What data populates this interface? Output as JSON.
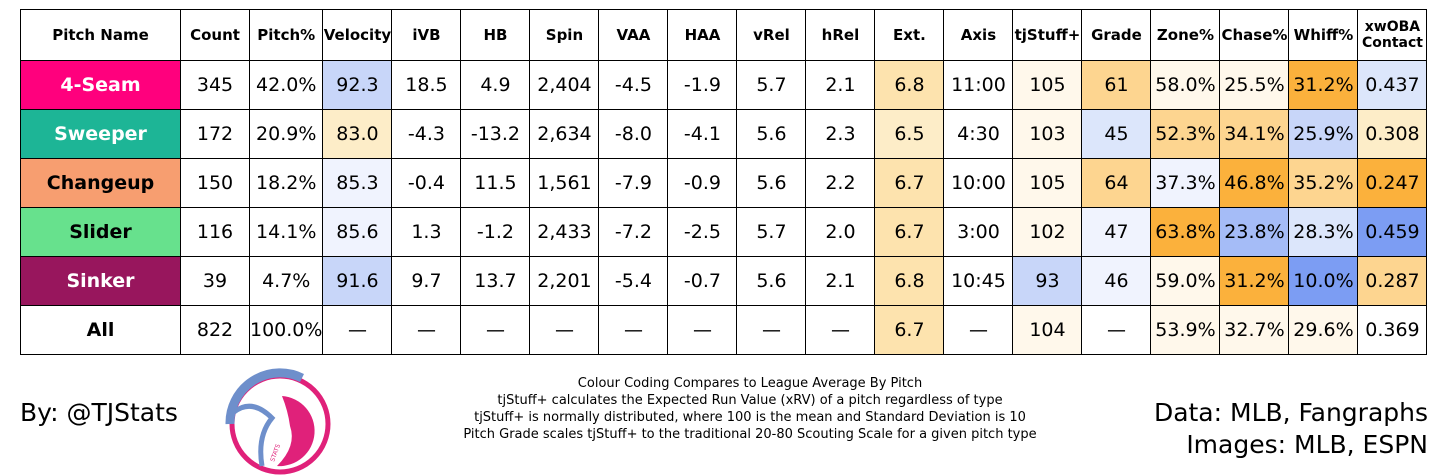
{
  "columns": [
    {
      "key": "name",
      "label": "Pitch Name"
    },
    {
      "key": "count",
      "label": "Count"
    },
    {
      "key": "pitch_pct",
      "label": "Pitch%"
    },
    {
      "key": "velocity",
      "label": "Velocity"
    },
    {
      "key": "ivb",
      "label": "iVB"
    },
    {
      "key": "hb",
      "label": "HB"
    },
    {
      "key": "spin",
      "label": "Spin"
    },
    {
      "key": "vaa",
      "label": "VAA"
    },
    {
      "key": "haa",
      "label": "HAA"
    },
    {
      "key": "vrel",
      "label": "vRel"
    },
    {
      "key": "hrel",
      "label": "hRel"
    },
    {
      "key": "ext",
      "label": "Ext."
    },
    {
      "key": "axis",
      "label": "Axis"
    },
    {
      "key": "tjstuff",
      "label": "tjStuff+"
    },
    {
      "key": "grade",
      "label": "Grade"
    },
    {
      "key": "zone",
      "label": "Zone%"
    },
    {
      "key": "chase",
      "label": "Chase%"
    },
    {
      "key": "whiff",
      "label": "Whiff%"
    },
    {
      "key": "xwoba",
      "label": "xwOBA Contact"
    }
  ],
  "colors": {
    "name_4seam": "#ff007d",
    "name_sweeper": "#1db596",
    "name_changeup": "#f79e70",
    "name_slider": "#67e18d",
    "name_sinker": "#98165d",
    "name_all": "#ffffff",
    "none": "#ffffff",
    "b_light": "#f0f3fe",
    "b_mid": "#dce6fb",
    "b_strong": "#c8d6f9",
    "b_vstrong": "#a5bcf7",
    "b_deep": "#7c9df3",
    "o_vlight": "#fff8eb",
    "o_light": "#fdedc8",
    "o_mid": "#fde3ae",
    "o_strong": "#fdd590",
    "o_vstrong": "#fbb13c"
  },
  "rows": [
    {
      "name": "4-Seam",
      "name_color": "name_4seam",
      "name_text": "#ffffff",
      "cells": [
        {
          "v": "345",
          "c": "none"
        },
        {
          "v": "42.0%",
          "c": "none"
        },
        {
          "v": "92.3",
          "c": "b_strong"
        },
        {
          "v": "18.5",
          "c": "none"
        },
        {
          "v": "4.9",
          "c": "none"
        },
        {
          "v": "2,404",
          "c": "none"
        },
        {
          "v": "-4.5",
          "c": "none"
        },
        {
          "v": "-1.9",
          "c": "none"
        },
        {
          "v": "5.7",
          "c": "none"
        },
        {
          "v": "2.1",
          "c": "none"
        },
        {
          "v": "6.8",
          "c": "o_mid"
        },
        {
          "v": "11:00",
          "c": "none"
        },
        {
          "v": "105",
          "c": "o_vlight"
        },
        {
          "v": "61",
          "c": "o_strong"
        },
        {
          "v": "58.0%",
          "c": "o_vlight"
        },
        {
          "v": "25.5%",
          "c": "o_vlight"
        },
        {
          "v": "31.2%",
          "c": "o_vstrong"
        },
        {
          "v": "0.437",
          "c": "b_mid"
        }
      ]
    },
    {
      "name": "Sweeper",
      "name_color": "name_sweeper",
      "name_text": "#ffffff",
      "cells": [
        {
          "v": "172",
          "c": "none"
        },
        {
          "v": "20.9%",
          "c": "none"
        },
        {
          "v": "83.0",
          "c": "o_light"
        },
        {
          "v": "-4.3",
          "c": "none"
        },
        {
          "v": "-13.2",
          "c": "none"
        },
        {
          "v": "2,634",
          "c": "none"
        },
        {
          "v": "-8.0",
          "c": "none"
        },
        {
          "v": "-4.1",
          "c": "none"
        },
        {
          "v": "5.6",
          "c": "none"
        },
        {
          "v": "2.3",
          "c": "none"
        },
        {
          "v": "6.5",
          "c": "o_light"
        },
        {
          "v": "4:30",
          "c": "none"
        },
        {
          "v": "103",
          "c": "o_vlight"
        },
        {
          "v": "45",
          "c": "b_mid"
        },
        {
          "v": "52.3%",
          "c": "o_strong"
        },
        {
          "v": "34.1%",
          "c": "o_strong"
        },
        {
          "v": "25.9%",
          "c": "b_strong"
        },
        {
          "v": "0.308",
          "c": "o_light"
        }
      ]
    },
    {
      "name": "Changeup",
      "name_color": "name_changeup",
      "name_text": "#000000",
      "cells": [
        {
          "v": "150",
          "c": "none"
        },
        {
          "v": "18.2%",
          "c": "none"
        },
        {
          "v": "85.3",
          "c": "b_light"
        },
        {
          "v": "-0.4",
          "c": "none"
        },
        {
          "v": "11.5",
          "c": "none"
        },
        {
          "v": "1,561",
          "c": "none"
        },
        {
          "v": "-7.9",
          "c": "none"
        },
        {
          "v": "-0.9",
          "c": "none"
        },
        {
          "v": "5.6",
          "c": "none"
        },
        {
          "v": "2.2",
          "c": "none"
        },
        {
          "v": "6.7",
          "c": "o_mid"
        },
        {
          "v": "10:00",
          "c": "none"
        },
        {
          "v": "105",
          "c": "o_vlight"
        },
        {
          "v": "64",
          "c": "o_strong"
        },
        {
          "v": "37.3%",
          "c": "b_light"
        },
        {
          "v": "46.8%",
          "c": "o_vstrong"
        },
        {
          "v": "35.2%",
          "c": "o_strong"
        },
        {
          "v": "0.247",
          "c": "o_vstrong"
        }
      ]
    },
    {
      "name": "Slider",
      "name_color": "name_slider",
      "name_text": "#000000",
      "cells": [
        {
          "v": "116",
          "c": "none"
        },
        {
          "v": "14.1%",
          "c": "none"
        },
        {
          "v": "85.6",
          "c": "b_light"
        },
        {
          "v": "1.3",
          "c": "none"
        },
        {
          "v": "-1.2",
          "c": "none"
        },
        {
          "v": "2,433",
          "c": "none"
        },
        {
          "v": "-7.2",
          "c": "none"
        },
        {
          "v": "-2.5",
          "c": "none"
        },
        {
          "v": "5.7",
          "c": "none"
        },
        {
          "v": "2.0",
          "c": "none"
        },
        {
          "v": "6.7",
          "c": "o_mid"
        },
        {
          "v": "3:00",
          "c": "none"
        },
        {
          "v": "102",
          "c": "o_vlight"
        },
        {
          "v": "47",
          "c": "b_light"
        },
        {
          "v": "63.8%",
          "c": "o_vstrong"
        },
        {
          "v": "23.8%",
          "c": "b_vstrong"
        },
        {
          "v": "28.3%",
          "c": "b_mid"
        },
        {
          "v": "0.459",
          "c": "b_deep"
        }
      ]
    },
    {
      "name": "Sinker",
      "name_color": "name_sinker",
      "name_text": "#ffffff",
      "cells": [
        {
          "v": "39",
          "c": "none"
        },
        {
          "v": "4.7%",
          "c": "none"
        },
        {
          "v": "91.6",
          "c": "b_strong"
        },
        {
          "v": "9.7",
          "c": "none"
        },
        {
          "v": "13.7",
          "c": "none"
        },
        {
          "v": "2,201",
          "c": "none"
        },
        {
          "v": "-5.4",
          "c": "none"
        },
        {
          "v": "-0.7",
          "c": "none"
        },
        {
          "v": "5.6",
          "c": "none"
        },
        {
          "v": "2.1",
          "c": "none"
        },
        {
          "v": "6.8",
          "c": "o_mid"
        },
        {
          "v": "10:45",
          "c": "none"
        },
        {
          "v": "93",
          "c": "b_strong"
        },
        {
          "v": "46",
          "c": "b_light"
        },
        {
          "v": "59.0%",
          "c": "o_vlight"
        },
        {
          "v": "31.2%",
          "c": "o_vstrong"
        },
        {
          "v": "10.0%",
          "c": "b_deep"
        },
        {
          "v": "0.287",
          "c": "o_strong"
        }
      ]
    },
    {
      "name": "All",
      "name_color": "name_all",
      "name_text": "#000000",
      "cells": [
        {
          "v": "822",
          "c": "none"
        },
        {
          "v": "100.0%",
          "c": "none"
        },
        {
          "v": "—",
          "c": "none"
        },
        {
          "v": "—",
          "c": "none"
        },
        {
          "v": "—",
          "c": "none"
        },
        {
          "v": "—",
          "c": "none"
        },
        {
          "v": "—",
          "c": "none"
        },
        {
          "v": "—",
          "c": "none"
        },
        {
          "v": "—",
          "c": "none"
        },
        {
          "v": "—",
          "c": "none"
        },
        {
          "v": "6.7",
          "c": "o_mid"
        },
        {
          "v": "—",
          "c": "none"
        },
        {
          "v": "104",
          "c": "o_vlight"
        },
        {
          "v": "—",
          "c": "none"
        },
        {
          "v": "53.9%",
          "c": "o_vlight"
        },
        {
          "v": "32.7%",
          "c": "o_vlight"
        },
        {
          "v": "29.6%",
          "c": "o_vlight"
        },
        {
          "v": "0.369",
          "c": "none"
        }
      ]
    }
  ],
  "footer": {
    "byline": "By: @TJStats",
    "logo_label": "logo",
    "logo_text": "STATS",
    "notes": [
      "Colour Coding Compares to League Average By Pitch",
      "tjStuff+ calculates the Expected Run Value (xRV) of a pitch regardless of type",
      "tjStuff+ is normally distributed, where 100 is the mean and Standard Deviation is 10",
      "Pitch Grade scales tjStuff+ to the traditional 20-80 Scouting Scale for a given pitch type"
    ],
    "data_source": "Data: MLB, Fangraphs",
    "image_source": "Images: MLB, ESPN"
  }
}
